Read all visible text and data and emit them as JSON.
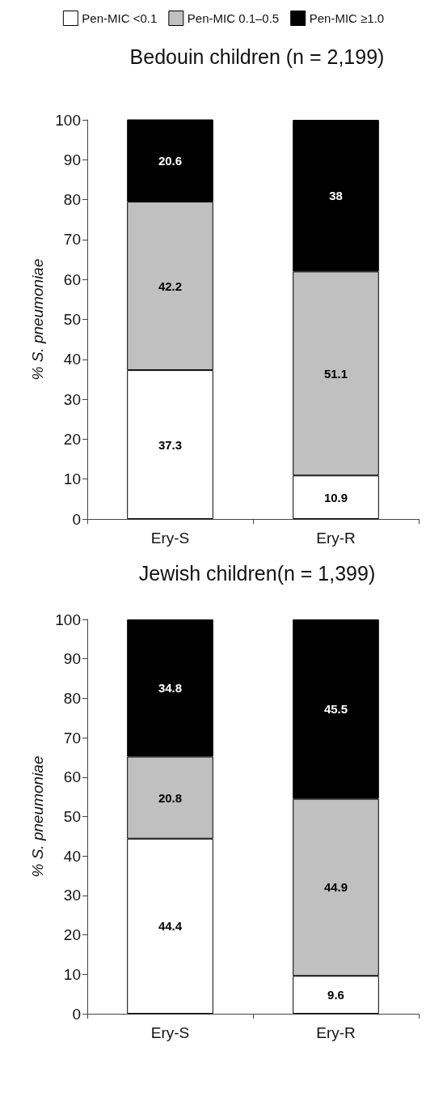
{
  "chart_data": [
    {
      "type": "bar",
      "stacked": true,
      "title": "Bedouin children (n = 2,199)",
      "ylabel": "% S. pneumoniae",
      "categories": [
        "Ery-S",
        "Ery-R"
      ],
      "series": [
        {
          "name": "Pen-MIC <0.1",
          "color": "#ffffff",
          "values": [
            37.3,
            10.9
          ]
        },
        {
          "name": "Pen-MIC 0.1–0.5",
          "color": "#c0c0c0",
          "values": [
            42.2,
            51.1
          ]
        },
        {
          "name": "Pen-MIC ≥1.0",
          "color": "#000000",
          "values": [
            20.6,
            38
          ]
        }
      ],
      "ylim": [
        0,
        100
      ],
      "yticks": [
        0,
        10,
        20,
        30,
        40,
        50,
        60,
        70,
        80,
        90,
        100
      ],
      "data_labels": true,
      "legend": "top",
      "grid": false
    },
    {
      "type": "bar",
      "stacked": true,
      "title": "Jewish children(n = 1,399)",
      "ylabel": "% S. pneumoniae",
      "categories": [
        "Ery-S",
        "Ery-R"
      ],
      "series": [
        {
          "color": "#ffffff",
          "values": [
            44.4,
            9.6
          ]
        },
        {
          "color": "#c0c0c0",
          "values": [
            20.8,
            44.9
          ]
        },
        {
          "color": "#000000",
          "values": [
            34.8,
            45.5
          ]
        }
      ],
      "ylim": [
        0,
        100
      ],
      "yticks": [
        0,
        10,
        20,
        30,
        40,
        50,
        60,
        70,
        80,
        90,
        100
      ],
      "data_labels": true,
      "legend": false,
      "grid": false
    }
  ]
}
